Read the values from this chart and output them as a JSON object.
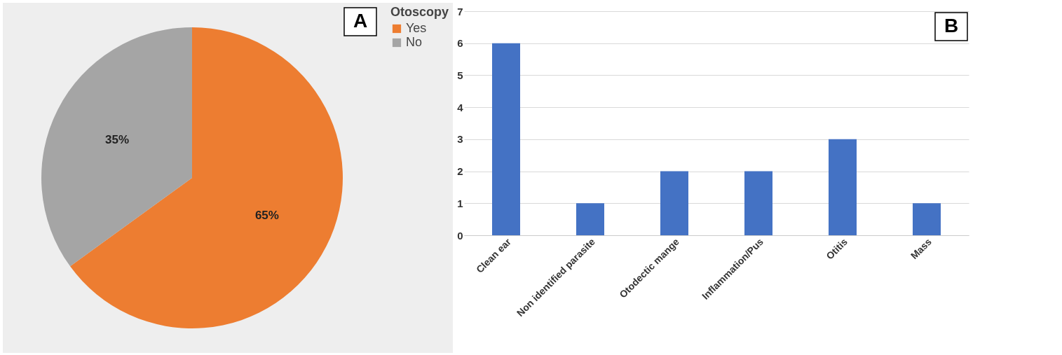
{
  "chart_data": [
    {
      "type": "pie",
      "legend_title": "Otoscopy",
      "categories": [
        "Yes",
        "No"
      ],
      "values": [
        65,
        35
      ],
      "colors": [
        "#ed7d31",
        "#a5a5a5"
      ],
      "value_labels": [
        "65%",
        "35%"
      ],
      "legend": "right",
      "annotations": [
        "A"
      ]
    },
    {
      "type": "bar",
      "categories": [
        "Clean ear",
        "Non identified parasite",
        "Otodectic mange",
        "Inflammation/Pus",
        "Otitis",
        "Mass"
      ],
      "values": [
        6,
        1,
        2,
        2,
        3,
        1
      ],
      "color": "#4472c4",
      "ylim": [
        0,
        7
      ],
      "yticks": [
        0,
        1,
        2,
        3,
        4,
        5,
        6,
        7
      ],
      "grid": "y",
      "annotations": [
        "B"
      ]
    }
  ]
}
